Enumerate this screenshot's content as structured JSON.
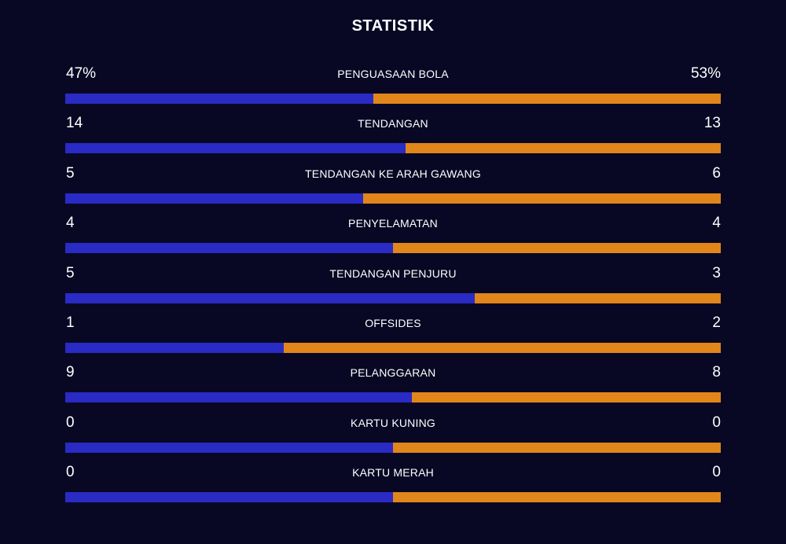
{
  "title": "STATISTIK",
  "colors": {
    "background": "#080825",
    "home_bar": "#2a2ac4",
    "away_bar": "#e0861a",
    "text": "#ffffff"
  },
  "stats": [
    {
      "label": "PENGUASAAN BOLA",
      "home": "47%",
      "away": "53%",
      "home_share": 0.47
    },
    {
      "label": "TENDANGAN",
      "home": "14",
      "away": "13",
      "home_share": 0.519
    },
    {
      "label": "TENDANGAN KE ARAH GAWANG",
      "home": "5",
      "away": "6",
      "home_share": 0.455
    },
    {
      "label": "PENYELAMATAN",
      "home": "4",
      "away": "4",
      "home_share": 0.5
    },
    {
      "label": "TENDANGAN PENJURU",
      "home": "5",
      "away": "3",
      "home_share": 0.625
    },
    {
      "label": "OFFSIDES",
      "home": "1",
      "away": "2",
      "home_share": 0.333
    },
    {
      "label": "PELANGGARAN",
      "home": "9",
      "away": "8",
      "home_share": 0.529
    },
    {
      "label": "KARTU KUNING",
      "home": "0",
      "away": "0",
      "home_share": 0.5
    },
    {
      "label": "KARTU MERAH",
      "home": "0",
      "away": "0",
      "home_share": 0.5
    }
  ]
}
